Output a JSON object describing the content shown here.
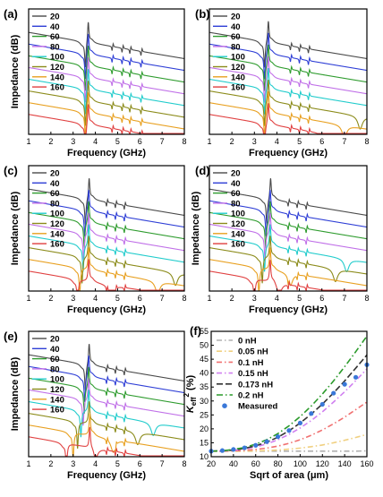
{
  "chart_data": [
    {
      "panel": "(a)",
      "type": "line",
      "xlabel": "Frequency (GHz)",
      "ylabel": "Impedance (dB)",
      "xlim": [
        1,
        8
      ],
      "xticks": [
        1,
        2,
        3,
        4,
        5,
        6,
        7,
        8
      ],
      "legend": "top-left",
      "series": [
        {
          "name": "20",
          "color": "#4a4a4a",
          "resonance": 3.55,
          "antiresonance": 3.68,
          "spurious": [
            4.75,
            5.2,
            5.55,
            6.05
          ],
          "dip_right": null
        },
        {
          "name": "40",
          "color": "#2f3fd6",
          "resonance": 3.55,
          "antiresonance": 3.68,
          "spurious": [
            4.75,
            5.2,
            5.55,
            6.05
          ],
          "dip_right": null
        },
        {
          "name": "60",
          "color": "#2f9c2f",
          "resonance": 3.55,
          "antiresonance": 3.68,
          "spurious": [
            4.75,
            5.2,
            5.55,
            6.05
          ],
          "dip_right": null
        },
        {
          "name": "80",
          "color": "#c070e8",
          "resonance": 3.55,
          "antiresonance": 3.68,
          "spurious": [
            4.75,
            5.2,
            5.55,
            6.05
          ],
          "dip_right": null
        },
        {
          "name": "100",
          "color": "#22cccc",
          "resonance": 3.55,
          "antiresonance": 3.68,
          "spurious": [
            4.75,
            5.2,
            5.55,
            6.05
          ],
          "dip_right": null
        },
        {
          "name": "120",
          "color": "#8b8b1a",
          "resonance": 3.55,
          "antiresonance": 3.68,
          "spurious": [
            4.75,
            5.2,
            5.55,
            6.05
          ],
          "dip_right": null
        },
        {
          "name": "140",
          "color": "#e8a020",
          "resonance": 3.55,
          "antiresonance": 3.68,
          "spurious": [
            4.75,
            5.2,
            5.55,
            6.05
          ],
          "dip_right": null
        },
        {
          "name": "160",
          "color": "#e04040",
          "resonance": 3.55,
          "antiresonance": 3.68,
          "spurious": [
            4.75,
            5.2,
            5.55,
            6.05
          ],
          "dip_right": null
        }
      ]
    },
    {
      "panel": "(b)",
      "type": "line",
      "xlabel": "Frequency (GHz)",
      "ylabel": "",
      "xlim": [
        1,
        8
      ],
      "xticks": [
        1,
        2,
        3,
        4,
        5,
        6,
        7,
        8
      ],
      "legend": "top-left",
      "series": [
        {
          "name": "20",
          "color": "#4a4a4a",
          "resonance": 3.45,
          "antiresonance": 3.62,
          "spurious": [
            4.6,
            5.0,
            5.4
          ],
          "dip_right": null
        },
        {
          "name": "40",
          "color": "#2f3fd6",
          "resonance": 3.45,
          "antiresonance": 3.62,
          "spurious": [
            4.6,
            5.0,
            5.4
          ],
          "dip_right": null
        },
        {
          "name": "60",
          "color": "#2f9c2f",
          "resonance": 3.45,
          "antiresonance": 3.62,
          "spurious": [
            4.6,
            5.0,
            5.4
          ],
          "dip_right": null
        },
        {
          "name": "80",
          "color": "#c070e8",
          "resonance": 3.45,
          "antiresonance": 3.62,
          "spurious": [
            4.6,
            5.0,
            5.4
          ],
          "dip_right": null
        },
        {
          "name": "100",
          "color": "#22cccc",
          "resonance": 3.45,
          "antiresonance": 3.62,
          "spurious": [
            4.6,
            5.0,
            5.4
          ],
          "dip_right": null
        },
        {
          "name": "120",
          "color": "#8b8b1a",
          "resonance": 3.45,
          "antiresonance": 3.62,
          "spurious": [
            4.6,
            5.0,
            5.4
          ],
          "dip_right": 7.7
        },
        {
          "name": "140",
          "color": "#e8a020",
          "resonance": 3.45,
          "antiresonance": 3.62,
          "spurious": [
            4.6,
            5.0,
            5.4
          ],
          "dip_right": 7.0
        },
        {
          "name": "160",
          "color": "#e04040",
          "resonance": 3.45,
          "antiresonance": 3.62,
          "spurious": [
            4.6,
            5.0,
            5.4
          ],
          "dip_right": 6.2
        }
      ]
    },
    {
      "panel": "(c)",
      "type": "line",
      "xlabel": "Frequency (GHz)",
      "ylabel": "Impedance (dB)",
      "xlim": [
        1,
        8
      ],
      "xticks": [
        1,
        2,
        3,
        4,
        5,
        6,
        7,
        8
      ],
      "legend": "top-left",
      "series": [
        {
          "name": "20",
          "color": "#4a4a4a",
          "resonance": 3.55,
          "antiresonance": 3.72,
          "spurious": [
            4.5,
            4.9,
            5.3
          ],
          "dip_right": null
        },
        {
          "name": "40",
          "color": "#2f3fd6",
          "resonance": 3.52,
          "antiresonance": 3.7,
          "spurious": [
            4.5,
            4.9,
            5.3
          ],
          "dip_right": null
        },
        {
          "name": "60",
          "color": "#2f9c2f",
          "resonance": 3.5,
          "antiresonance": 3.7,
          "spurious": [
            4.5,
            4.9,
            5.3
          ],
          "dip_right": null
        },
        {
          "name": "80",
          "color": "#c070e8",
          "resonance": 3.47,
          "antiresonance": 3.7,
          "spurious": [
            4.5,
            4.9,
            5.3
          ],
          "dip_right": null
        },
        {
          "name": "100",
          "color": "#22cccc",
          "resonance": 3.45,
          "antiresonance": 3.7,
          "spurious": [
            4.5,
            4.9,
            5.3
          ],
          "dip_right": null
        },
        {
          "name": "120",
          "color": "#8b8b1a",
          "resonance": 3.4,
          "antiresonance": 3.7,
          "spurious": [
            4.5,
            4.9,
            5.3
          ],
          "dip_right": 7.6
        },
        {
          "name": "140",
          "color": "#e8a020",
          "resonance": 3.3,
          "antiresonance": 3.7,
          "spurious": [
            4.5,
            4.9,
            5.3
          ],
          "dip_right": 6.8
        },
        {
          "name": "160",
          "color": "#e04040",
          "resonance": 3.2,
          "antiresonance": 3.7,
          "spurious": [
            4.5,
            4.9,
            5.3
          ],
          "dip_right": 4.7
        }
      ]
    },
    {
      "panel": "(d)",
      "type": "line",
      "xlabel": "Frequency (GHz)",
      "ylabel": "Impedance (dB)",
      "xlim": [
        1,
        8
      ],
      "xticks": [
        1,
        2,
        3,
        4,
        5,
        6,
        7,
        8
      ],
      "legend": "top-left",
      "series": [
        {
          "name": "20",
          "color": "#4a4a4a",
          "resonance": 3.55,
          "antiresonance": 3.72,
          "spurious": [
            4.5,
            4.9,
            5.3
          ],
          "dip_right": null
        },
        {
          "name": "40",
          "color": "#2f3fd6",
          "resonance": 3.52,
          "antiresonance": 3.7,
          "spurious": [
            4.5,
            4.9,
            5.3
          ],
          "dip_right": null
        },
        {
          "name": "60",
          "color": "#2f9c2f",
          "resonance": 3.5,
          "antiresonance": 3.7,
          "spurious": [
            4.5,
            4.9,
            5.3
          ],
          "dip_right": null
        },
        {
          "name": "80",
          "color": "#c070e8",
          "resonance": 3.47,
          "antiresonance": 3.7,
          "spurious": [
            4.5,
            4.9,
            5.3
          ],
          "dip_right": null
        },
        {
          "name": "100",
          "color": "#22cccc",
          "resonance": 3.45,
          "antiresonance": 3.7,
          "spurious": [
            4.5,
            4.9,
            5.3
          ],
          "dip_right": 7.1
        },
        {
          "name": "120",
          "color": "#8b8b1a",
          "resonance": 3.35,
          "antiresonance": 3.7,
          "spurious": [
            4.5,
            4.9,
            5.3
          ],
          "dip_right": 6.6
        },
        {
          "name": "140",
          "color": "#e8a020",
          "resonance": 3.2,
          "antiresonance": 3.7,
          "spurious": [
            4.5,
            4.9,
            5.3
          ],
          "dip_right": 4.6
        },
        {
          "name": "160",
          "color": "#e04040",
          "resonance": 3.0,
          "antiresonance": 3.7,
          "spurious": [
            4.5,
            4.9,
            5.3
          ],
          "dip_right": 4.1
        }
      ]
    },
    {
      "panel": "(e)",
      "type": "line",
      "xlabel": "Frequency (GHz)",
      "ylabel": "Impedance (dB)",
      "xlim": [
        1,
        8
      ],
      "xticks": [
        1,
        2,
        3,
        4,
        5,
        6,
        7,
        8
      ],
      "legend": "top-left",
      "series": [
        {
          "name": "20",
          "color": "#4a4a4a",
          "resonance": 3.55,
          "antiresonance": 3.72,
          "spurious": [
            4.5,
            4.9,
            5.3
          ],
          "dip_right": null
        },
        {
          "name": "40",
          "color": "#2f3fd6",
          "resonance": 3.52,
          "antiresonance": 3.7,
          "spurious": [
            4.5,
            4.9,
            5.3
          ],
          "dip_right": null
        },
        {
          "name": "60",
          "color": "#2f9c2f",
          "resonance": 3.5,
          "antiresonance": 3.7,
          "spurious": [
            4.5,
            4.9,
            5.3
          ],
          "dip_right": null
        },
        {
          "name": "80",
          "color": "#c070e8",
          "resonance": 3.45,
          "antiresonance": 3.7,
          "spurious": [
            4.5,
            4.9,
            5.3
          ],
          "dip_right": null
        },
        {
          "name": "100",
          "color": "#22cccc",
          "resonance": 3.35,
          "antiresonance": 3.7,
          "spurious": [
            4.5,
            4.9,
            5.3
          ],
          "dip_right": 6.6
        },
        {
          "name": "120",
          "color": "#8b8b1a",
          "resonance": 3.2,
          "antiresonance": 3.72,
          "spurious": [
            4.5,
            4.9,
            5.3
          ],
          "dip_right": 5.9
        },
        {
          "name": "140",
          "color": "#e8a020",
          "resonance": 3.0,
          "antiresonance": 3.75,
          "spurious": [
            4.5,
            4.9,
            5.3
          ],
          "dip_right": 4.8
        },
        {
          "name": "160",
          "color": "#e04040",
          "resonance": 2.7,
          "antiresonance": 3.75,
          "spurious": [
            4.5,
            4.9,
            5.3
          ],
          "dip_right": 4.0
        }
      ]
    },
    {
      "panel": "(f)",
      "type": "line",
      "xlabel": "Sqrt of area (μm)",
      "ylabel_main": "K",
      "ylabel_sub": "eff",
      "ylabel_sup": "2",
      "ylabel_unit": " (%)",
      "xlim": [
        20,
        160
      ],
      "ylim": [
        10,
        55
      ],
      "xticks": [
        20,
        40,
        60,
        80,
        100,
        120,
        140,
        160
      ],
      "yticks": [
        10,
        15,
        20,
        25,
        30,
        35,
        40,
        45,
        50,
        55
      ],
      "legend": "top-left",
      "x": [
        20,
        30,
        40,
        50,
        60,
        70,
        80,
        90,
        100,
        110,
        120,
        130,
        140,
        150,
        160
      ],
      "series": [
        {
          "name": "0 nH",
          "color": "#b0b0b0",
          "dash": "6,3,1.5,3",
          "values": [
            12,
            12,
            12,
            12,
            12,
            12,
            12,
            12,
            12,
            12,
            12,
            12,
            12,
            12,
            12.1
          ]
        },
        {
          "name": "0.05 nH",
          "color": "#f0d080",
          "dash": "6,3,1.5,3",
          "values": [
            12,
            12,
            12,
            12,
            12.1,
            12.2,
            12.4,
            12.7,
            13.1,
            13.6,
            14.2,
            15,
            15.9,
            16.9,
            18
          ]
        },
        {
          "name": "0.1 nH",
          "color": "#f07070",
          "dash": "6,3,1.5,3",
          "values": [
            12,
            12,
            12.1,
            12.3,
            12.6,
            13.1,
            13.8,
            14.8,
            16.1,
            17.7,
            19.6,
            21.8,
            24.2,
            26.9,
            29.6
          ]
        },
        {
          "name": "0.15 nH",
          "color": "#d080f0",
          "dash": "6,3,1.5,3",
          "values": [
            12,
            12.1,
            12.3,
            12.8,
            13.5,
            14.6,
            16.1,
            18,
            20.3,
            23,
            26.1,
            29.6,
            33.3,
            37.3,
            41.5
          ]
        },
        {
          "name": "0.173 nH",
          "color": "#333333",
          "dash": "7,3",
          "values": [
            12,
            12.1,
            12.4,
            13,
            13.9,
            15.2,
            17,
            19.3,
            22.1,
            25.3,
            28.9,
            32.9,
            37.2,
            41.8,
            46.5
          ]
        },
        {
          "name": "0.2 nH",
          "color": "#2a9a2a",
          "dash": "7,3,1.5,3",
          "values": [
            12,
            12.1,
            12.6,
            13.3,
            14.5,
            16.1,
            18.3,
            21.1,
            24.4,
            28.2,
            32.5,
            37.2,
            42.3,
            47.7,
            53.3
          ]
        }
      ],
      "measured": {
        "name": "Measured",
        "color": "#3a78d8",
        "x": [
          20,
          30,
          40,
          50,
          60,
          70,
          80,
          90,
          100,
          110,
          120,
          130,
          140,
          150,
          160
        ],
        "values": [
          12,
          12.2,
          12.6,
          13.2,
          14.1,
          15.4,
          17.2,
          19.4,
          22.1,
          25.5,
          28.8,
          32.8,
          36,
          38.5,
          43
        ]
      }
    }
  ]
}
